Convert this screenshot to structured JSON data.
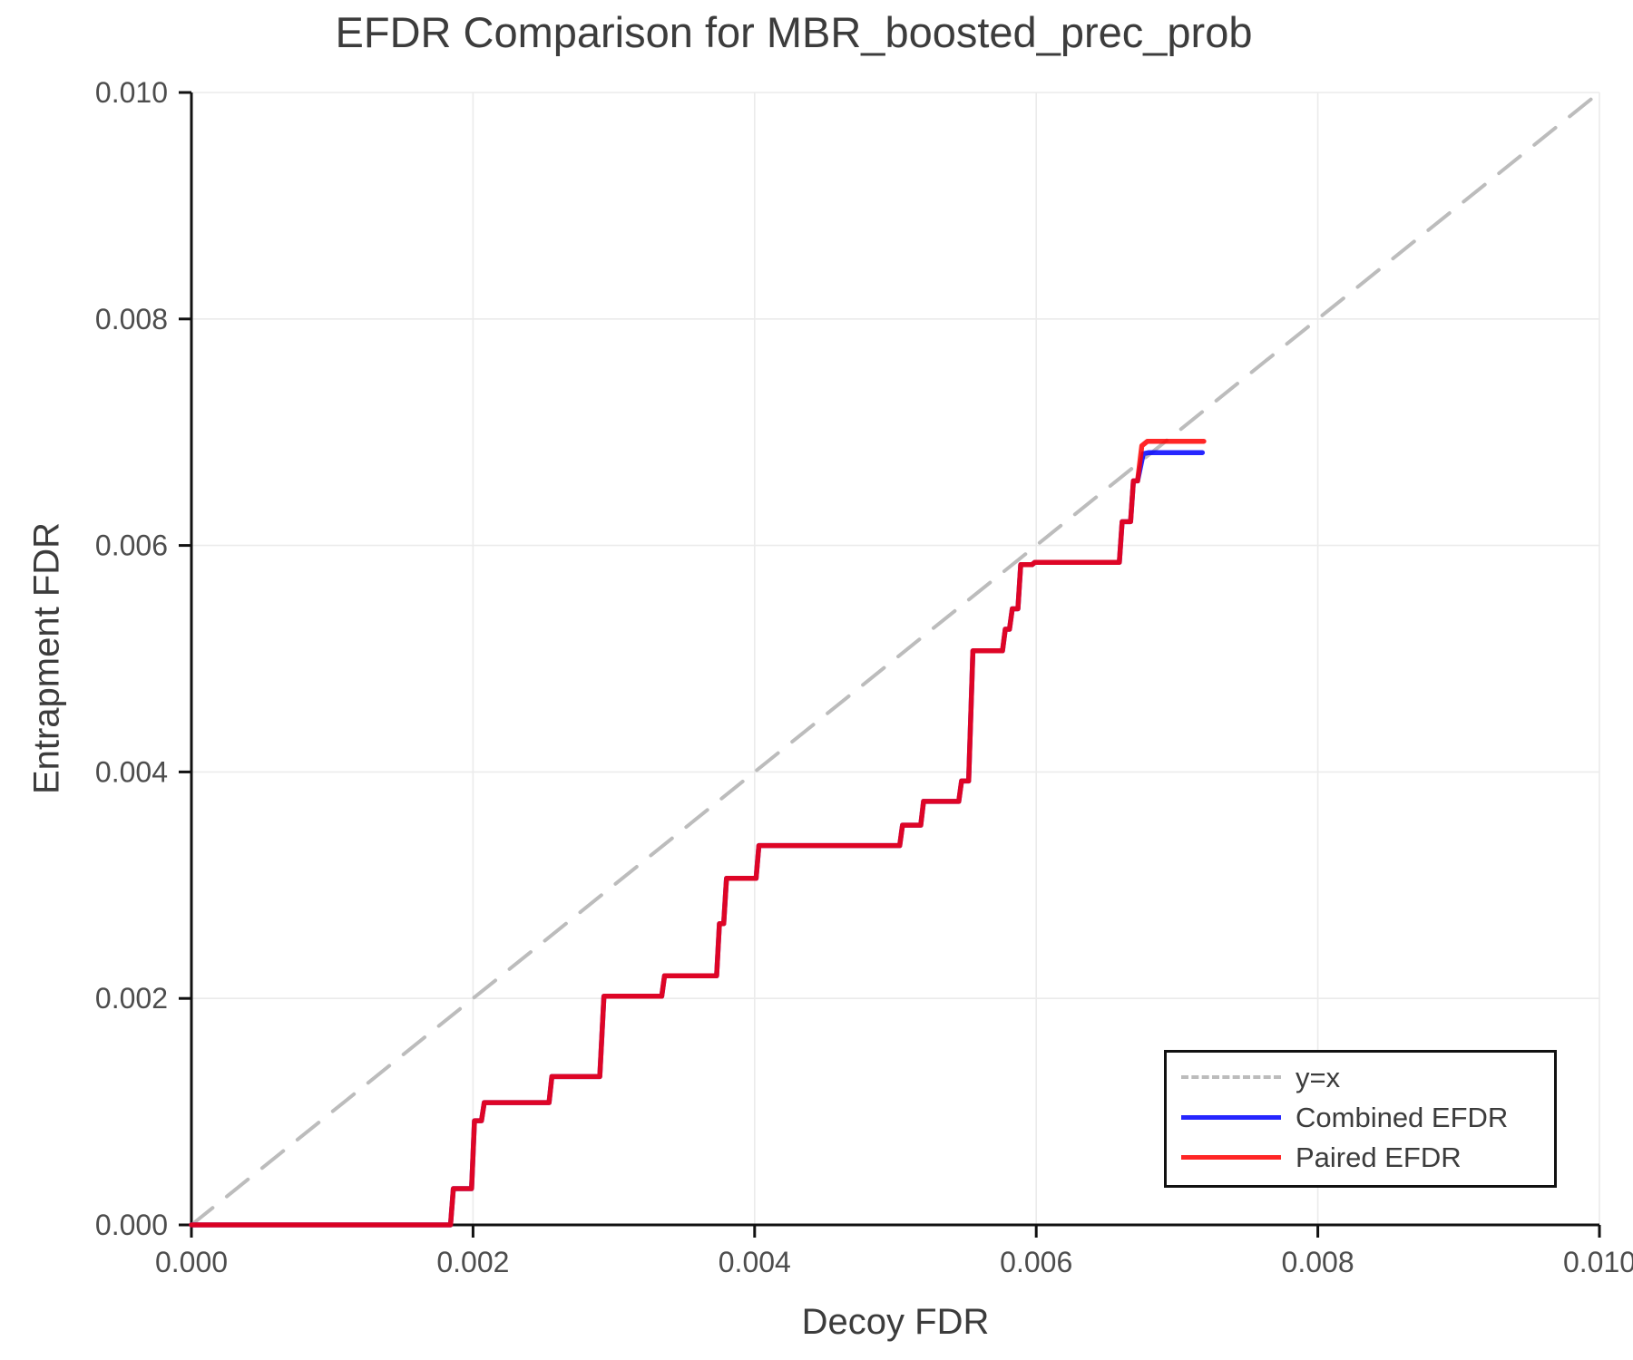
{
  "chart_data": {
    "type": "line",
    "title": "EFDR Comparison for MBR_boosted_prec_prob",
    "xlabel": "Decoy FDR",
    "ylabel": "Entrapment FDR",
    "xlim": [
      0.0,
      0.01
    ],
    "ylim": [
      0.0,
      0.01
    ],
    "grid": true,
    "xticks": {
      "values": [
        0.0,
        0.002,
        0.004,
        0.006,
        0.008,
        0.01
      ],
      "labels": [
        "0.000",
        "0.002",
        "0.004",
        "0.006",
        "0.008",
        "0.010"
      ]
    },
    "yticks": {
      "values": [
        0.0,
        0.002,
        0.004,
        0.006,
        0.008,
        0.01
      ],
      "labels": [
        "0.000",
        "0.002",
        "0.004",
        "0.006",
        "0.008",
        "0.010"
      ]
    },
    "legend": {
      "position": "lower-right"
    },
    "colors": {
      "identity_line": "#bcbcbc",
      "combined": "#0000ff",
      "paired": "#ff0000",
      "grid": "#ebebeb",
      "spine": "#111111",
      "text": "#3c3c3c",
      "tick_text": "#4d4d4d"
    },
    "series": [
      {
        "name": "y=x",
        "color": "#bcbcbc",
        "style": "dashed",
        "opacity": 1,
        "points": [
          [
            0.0,
            0.0
          ],
          [
            0.01,
            0.01
          ]
        ]
      },
      {
        "name": "Combined EFDR",
        "color": "#0000ff",
        "style": "solid",
        "opacity": 0.85,
        "points": [
          [
            0.0,
            0.0
          ],
          [
            0.00184,
            0.0
          ],
          [
            0.00186,
            0.00032
          ],
          [
            0.00199,
            0.00032
          ],
          [
            0.00201,
            0.00092
          ],
          [
            0.00206,
            0.00092
          ],
          [
            0.00208,
            0.00108
          ],
          [
            0.00254,
            0.00108
          ],
          [
            0.00256,
            0.00131
          ],
          [
            0.0029,
            0.00131
          ],
          [
            0.00293,
            0.00202
          ],
          [
            0.00334,
            0.00202
          ],
          [
            0.00336,
            0.0022
          ],
          [
            0.00373,
            0.0022
          ],
          [
            0.00375,
            0.00266
          ],
          [
            0.00378,
            0.00266
          ],
          [
            0.0038,
            0.00306
          ],
          [
            0.00401,
            0.00306
          ],
          [
            0.00403,
            0.00335
          ],
          [
            0.00503,
            0.00335
          ],
          [
            0.00505,
            0.00353
          ],
          [
            0.00518,
            0.00353
          ],
          [
            0.0052,
            0.00374
          ],
          [
            0.00545,
            0.00374
          ],
          [
            0.00547,
            0.00392
          ],
          [
            0.00552,
            0.00392
          ],
          [
            0.00555,
            0.00507
          ],
          [
            0.00576,
            0.00507
          ],
          [
            0.00578,
            0.00526
          ],
          [
            0.00581,
            0.00526
          ],
          [
            0.00583,
            0.00544
          ],
          [
            0.00587,
            0.00544
          ],
          [
            0.00589,
            0.00583
          ],
          [
            0.00597,
            0.00583
          ],
          [
            0.00599,
            0.00585
          ],
          [
            0.00659,
            0.00585
          ],
          [
            0.00661,
            0.00621
          ],
          [
            0.00667,
            0.00621
          ],
          [
            0.00669,
            0.00657
          ],
          [
            0.00672,
            0.00657
          ],
          [
            0.00676,
            0.00681
          ],
          [
            0.0068,
            0.00682
          ],
          [
            0.00718,
            0.00682
          ]
        ]
      },
      {
        "name": "Paired EFDR",
        "color": "#ff0000",
        "style": "solid",
        "opacity": 0.85,
        "points": [
          [
            0.0,
            0.0
          ],
          [
            0.00184,
            0.0
          ],
          [
            0.00186,
            0.00032
          ],
          [
            0.00199,
            0.00032
          ],
          [
            0.00201,
            0.00092
          ],
          [
            0.00206,
            0.00092
          ],
          [
            0.00208,
            0.00108
          ],
          [
            0.00254,
            0.00108
          ],
          [
            0.00256,
            0.00131
          ],
          [
            0.0029,
            0.00131
          ],
          [
            0.00293,
            0.00202
          ],
          [
            0.00334,
            0.00202
          ],
          [
            0.00336,
            0.0022
          ],
          [
            0.00373,
            0.0022
          ],
          [
            0.00375,
            0.00266
          ],
          [
            0.00378,
            0.00266
          ],
          [
            0.0038,
            0.00306
          ],
          [
            0.00401,
            0.00306
          ],
          [
            0.00403,
            0.00335
          ],
          [
            0.00503,
            0.00335
          ],
          [
            0.00505,
            0.00353
          ],
          [
            0.00518,
            0.00353
          ],
          [
            0.0052,
            0.00374
          ],
          [
            0.00545,
            0.00374
          ],
          [
            0.00547,
            0.00392
          ],
          [
            0.00552,
            0.00392
          ],
          [
            0.00555,
            0.00507
          ],
          [
            0.00576,
            0.00507
          ],
          [
            0.00578,
            0.00526
          ],
          [
            0.00581,
            0.00526
          ],
          [
            0.00583,
            0.00544
          ],
          [
            0.00587,
            0.00544
          ],
          [
            0.00589,
            0.00583
          ],
          [
            0.00597,
            0.00583
          ],
          [
            0.00599,
            0.00585
          ],
          [
            0.00659,
            0.00585
          ],
          [
            0.00661,
            0.00621
          ],
          [
            0.00667,
            0.00621
          ],
          [
            0.00669,
            0.00657
          ],
          [
            0.00672,
            0.00657
          ],
          [
            0.00675,
            0.00688
          ],
          [
            0.00679,
            0.00692
          ],
          [
            0.00719,
            0.00692
          ]
        ]
      }
    ]
  }
}
